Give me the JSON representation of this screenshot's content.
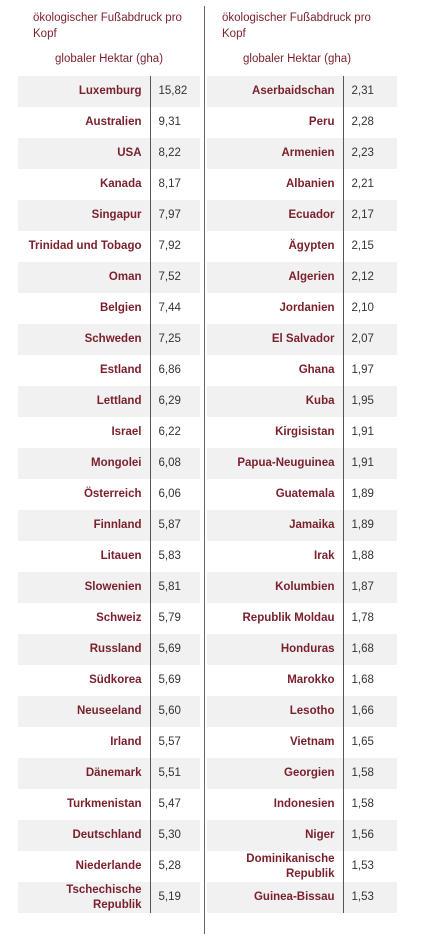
{
  "tables": [
    {
      "header": {
        "title": "ökologischer Fußabdruck pro Kopf",
        "unit": "globaler Hektar (gha)"
      },
      "rows": [
        [
          "Luxemburg",
          "15,82"
        ],
        [
          "Australien",
          "9,31"
        ],
        [
          "USA",
          "8,22"
        ],
        [
          "Kanada",
          "8,17"
        ],
        [
          "Singapur",
          "7,97"
        ],
        [
          "Trinidad und Tobago",
          "7,92"
        ],
        [
          "Oman",
          "7,52"
        ],
        [
          "Belgien",
          "7,44"
        ],
        [
          "Schweden",
          "7,25"
        ],
        [
          "Estland",
          "6,86"
        ],
        [
          "Lettland",
          "6,29"
        ],
        [
          "Israel",
          "6,22"
        ],
        [
          "Mongolei",
          "6,08"
        ],
        [
          "Österreich",
          "6,06"
        ],
        [
          "Finnland",
          "5,87"
        ],
        [
          "Litauen",
          "5,83"
        ],
        [
          "Slowenien",
          "5,81"
        ],
        [
          "Schweiz",
          "5,79"
        ],
        [
          "Russland",
          "5,69"
        ],
        [
          "Südkorea",
          "5,69"
        ],
        [
          "Neuseeland",
          "5,60"
        ],
        [
          "Irland",
          "5,57"
        ],
        [
          "Dänemark",
          "5,51"
        ],
        [
          "Turkmenistan",
          "5,47"
        ],
        [
          "Deutschland",
          "5,30"
        ],
        [
          "Niederlande",
          "5,28"
        ],
        [
          "Tschechische Republik",
          "5,19"
        ]
      ]
    },
    {
      "header": {
        "title": "ökologischer Fußabdruck pro Kopf",
        "unit": "globaler Hektar (gha)"
      },
      "rows": [
        [
          "Aserbaidschan",
          "2,31"
        ],
        [
          "Peru",
          "2,28"
        ],
        [
          "Armenien",
          "2,23"
        ],
        [
          "Albanien",
          "2,21"
        ],
        [
          "Ecuador",
          "2,17"
        ],
        [
          "Ägypten",
          "2,15"
        ],
        [
          "Algerien",
          "2,12"
        ],
        [
          "Jordanien",
          "2,10"
        ],
        [
          "El Salvador",
          "2,07"
        ],
        [
          "Ghana",
          "1,97"
        ],
        [
          "Kuba",
          "1,95"
        ],
        [
          "Kirgisistan",
          "1,91"
        ],
        [
          "Papua-Neuguinea",
          "1,91"
        ],
        [
          "Guatemala",
          "1,89"
        ],
        [
          "Jamaika",
          "1,89"
        ],
        [
          "Irak",
          "1,88"
        ],
        [
          "Kolumbien",
          "1,87"
        ],
        [
          "Republik Moldau",
          "1,78"
        ],
        [
          "Honduras",
          "1,68"
        ],
        [
          "Marokko",
          "1,68"
        ],
        [
          "Lesotho",
          "1,66"
        ],
        [
          "Vietnam",
          "1,65"
        ],
        [
          "Georgien",
          "1,58"
        ],
        [
          "Indonesien",
          "1,58"
        ],
        [
          "Niger",
          "1,56"
        ],
        [
          "Dominikanische Republik",
          "1,53"
        ],
        [
          "Guinea-Bissau",
          "1,53"
        ]
      ]
    }
  ]
}
